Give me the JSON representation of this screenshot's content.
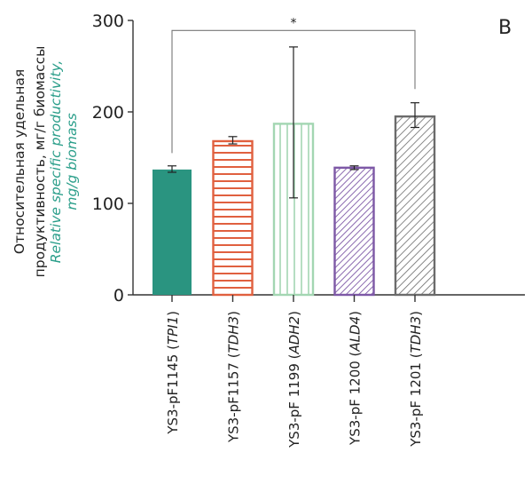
{
  "chart_data": {
    "type": "bar",
    "panel_label": "B",
    "ylabel_ru": [
      "Относительная удельная",
      "продуктивность, мг/г биомассы"
    ],
    "ylabel_en": [
      "Relative specific productivity,",
      "mg/g biomass"
    ],
    "ylim": [
      0,
      300
    ],
    "yticks": [
      "0",
      "100",
      "200",
      "300"
    ],
    "categories": [
      {
        "name": "YS3-pF1145 (",
        "gene": "TPI1",
        "close": ")"
      },
      {
        "name": "YS3-pF1157 (",
        "gene": "TDH3",
        "close": ")"
      },
      {
        "name": "YS3-pF 1199 (",
        "gene": "ADH2",
        "close": ")"
      },
      {
        "name": "YS3-pF 1200 (",
        "gene": "ALD4",
        "close": ")"
      },
      {
        "name": "YS3-pF 1201 (",
        "gene": "TDH3",
        "close": ")"
      }
    ],
    "values": [
      137,
      168,
      187,
      139,
      195
    ],
    "error_low": [
      134,
      165,
      106,
      137,
      183
    ],
    "error_high": [
      141,
      173,
      271,
      141,
      210
    ],
    "colors": [
      "#2a9480",
      "#e0603f",
      "#a3d6b2",
      "#7d58a6",
      "#6b6b6b"
    ],
    "patterns": [
      "solid",
      "horizontal",
      "vertical",
      "diagonal",
      "diagonal"
    ],
    "significance": {
      "from": 0,
      "to": 4,
      "label": "*",
      "level": 289
    }
  }
}
